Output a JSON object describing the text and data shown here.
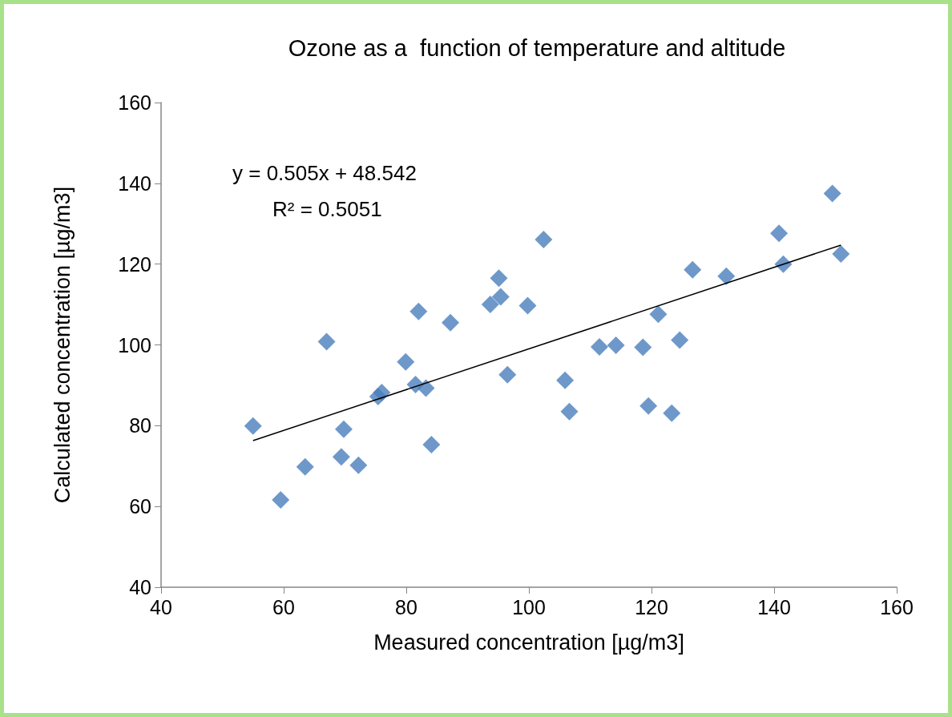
{
  "chart_data": {
    "type": "scatter",
    "title": "Ozone as a  function of temperature and altitude",
    "xlabel": "Measured concentration [µg/m3]",
    "ylabel": "Calculated concentration [µg/m3]",
    "xlim": [
      40,
      160
    ],
    "xticks": [
      40,
      60,
      80,
      100,
      120,
      140,
      160
    ],
    "ylim": [
      40,
      160
    ],
    "yticks": [
      40,
      60,
      80,
      100,
      120,
      140,
      160
    ],
    "grid": false,
    "marker": "diamond",
    "annotations": [
      "y = 0.505x + 48.542",
      "R² = 0.5051"
    ],
    "series": [
      {
        "color": "#4a7ebb",
        "x": [
          55.0,
          59.5,
          63.5,
          67.0,
          69.4,
          69.8,
          72.2,
          75.4,
          76.0,
          79.9,
          81.5,
          82.0,
          83.2,
          84.1,
          87.2,
          93.7,
          95.4,
          95.1,
          96.5,
          99.8,
          102.4,
          105.9,
          106.6,
          111.5,
          114.2,
          118.6,
          119.5,
          121.1,
          123.3,
          124.6,
          126.7,
          132.2,
          140.8,
          141.5,
          149.5,
          150.9
        ],
        "values": [
          79.9,
          61.6,
          69.8,
          100.8,
          72.3,
          79.1,
          70.2,
          87.2,
          88.2,
          95.8,
          90.2,
          108.3,
          89.3,
          75.3,
          105.5,
          110.0,
          111.9,
          116.5,
          92.6,
          109.7,
          126.1,
          91.2,
          83.5,
          99.5,
          99.9,
          99.4,
          84.9,
          107.6,
          83.1,
          101.2,
          118.6,
          117.0,
          127.6,
          120.0,
          137.5,
          122.5
        ]
      },
      {
        "type": "line",
        "color": "#000000",
        "line_style": "solid",
        "marker": "none",
        "x": [
          55.0,
          150.9
        ],
        "values": [
          76.3,
          124.7
        ]
      }
    ]
  }
}
